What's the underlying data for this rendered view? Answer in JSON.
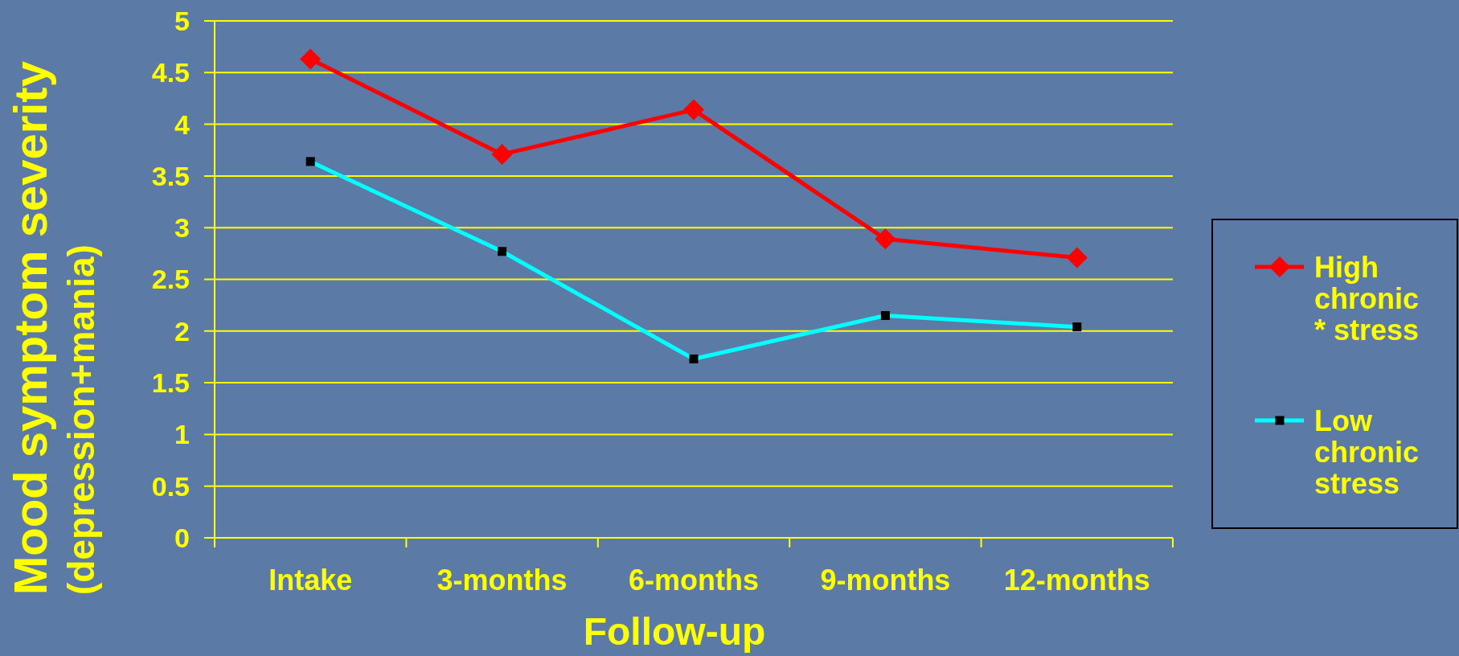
{
  "chart_data": {
    "type": "line",
    "xlabel": "Follow-up",
    "ylabel": "Mood symptom severity\n(depression+mania)",
    "categories": [
      "Intake",
      "3-months",
      "6-months",
      "9-months",
      "12-months"
    ],
    "series": [
      {
        "name": "High chronic * stress",
        "color": "#ff0000",
        "marker": "diamond",
        "values": [
          4.63,
          3.71,
          4.14,
          2.89,
          2.71
        ]
      },
      {
        "name": "Low chronic stress",
        "color": "#00ffff",
        "marker": "square",
        "colors": [
          "#000000",
          "#000000",
          "#000000",
          "#000000",
          "#000000"
        ],
        "values": [
          3.64,
          2.77,
          1.73,
          2.15,
          2.04
        ]
      }
    ],
    "ylim": [
      0,
      5
    ],
    "yticks": [
      0,
      0.5,
      1,
      1.5,
      2,
      2.5,
      3,
      3.5,
      4,
      4.5,
      5
    ],
    "grid": "y",
    "legend": "right"
  }
}
